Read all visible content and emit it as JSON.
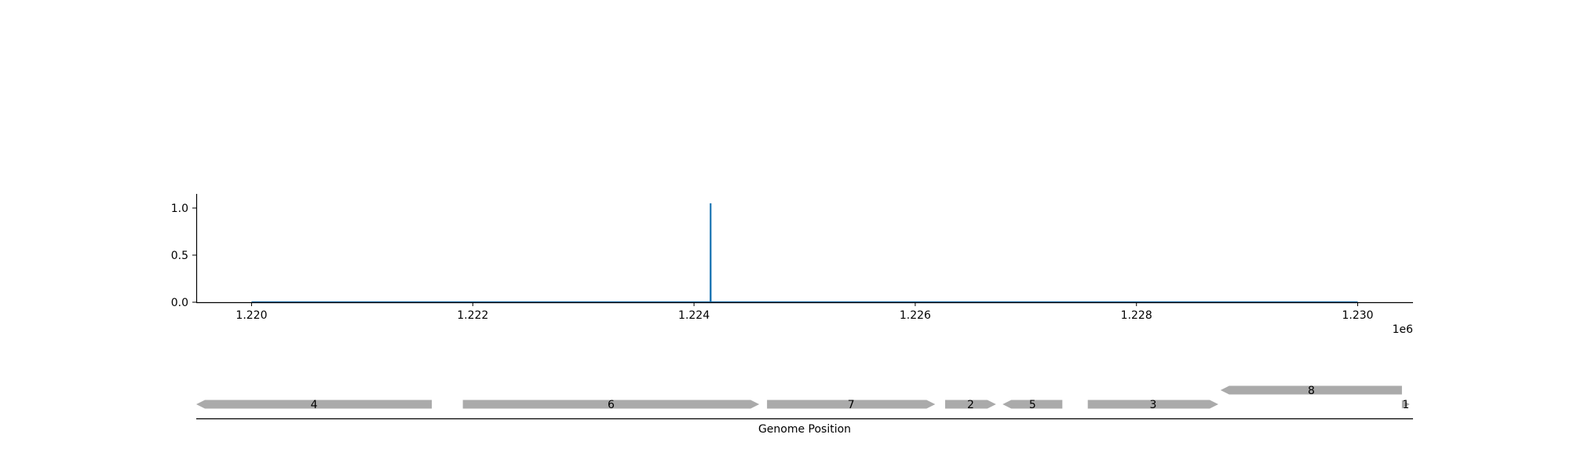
{
  "chart_data": [
    {
      "type": "line",
      "title": "",
      "xlabel": "",
      "ylabel": "",
      "xlim": [
        1219500,
        1230500
      ],
      "ylim": [
        0,
        1.15
      ],
      "x_offset_label": "1e6",
      "x_ticks": [
        1220000,
        1222000,
        1224000,
        1226000,
        1228000,
        1230000
      ],
      "x_tick_labels": [
        "1.220",
        "1.222",
        "1.224",
        "1.226",
        "1.228",
        "1.230"
      ],
      "y_ticks": [
        0.0,
        0.5,
        1.0
      ],
      "y_tick_labels": [
        "0.0",
        "0.5",
        "1.0"
      ],
      "grid": false,
      "series": [
        {
          "color": "#1f77b4",
          "points": [
            {
              "x": 1220000,
              "y": 0
            },
            {
              "x": 1224149,
              "y": 0
            },
            {
              "x": 1224150,
              "y": 1.05
            },
            {
              "x": 1224151,
              "y": 0
            },
            {
              "x": 1230000,
              "y": 0
            }
          ]
        }
      ]
    },
    {
      "type": "gene-track",
      "xlabel": "Genome Position",
      "xlim": [
        1219500,
        1230500
      ],
      "feature_color": "#aaaaaa",
      "features": [
        {
          "label": "4",
          "start": 1219500,
          "end": 1221630,
          "strand": -1,
          "level": 0
        },
        {
          "label": "6",
          "start": 1221910,
          "end": 1224590,
          "strand": 1,
          "level": 0
        },
        {
          "label": "7",
          "start": 1224660,
          "end": 1226180,
          "strand": 1,
          "level": 0
        },
        {
          "label": "2",
          "start": 1226270,
          "end": 1226730,
          "strand": 1,
          "level": 0
        },
        {
          "label": "5",
          "start": 1226790,
          "end": 1227330,
          "strand": -1,
          "level": 0
        },
        {
          "label": "3",
          "start": 1227560,
          "end": 1228740,
          "strand": 1,
          "level": 0
        },
        {
          "label": "8",
          "start": 1228760,
          "end": 1230400,
          "strand": -1,
          "level": 1
        },
        {
          "label": "1",
          "start": 1230400,
          "end": 1230470,
          "strand": 1,
          "level": 0
        }
      ]
    }
  ]
}
